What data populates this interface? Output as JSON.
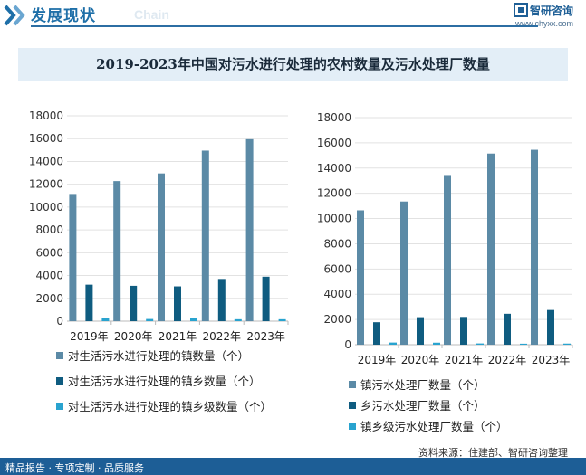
{
  "header": {
    "section_title": "发展现状",
    "section_subtitle": "Chain",
    "brand_name": "智研咨询",
    "brand_url": "www.chyxx.com"
  },
  "banner_title": "2019-2023年中国对污水进行处理的农村数量及污水处理厂数量",
  "source_note": "资料来源：住建部、智研咨询整理",
  "footer": {
    "left": "精品报告 · 专项定制 · 品质服务"
  },
  "colors": {
    "series1": "#5b8aa6",
    "series2": "#0f5c80",
    "series3": "#29a3cf",
    "footer_bg": "#1d5e96"
  },
  "chart_data": [
    {
      "type": "bar",
      "categories": [
        "2019年",
        "2020年",
        "2021年",
        "2022年",
        "2023年"
      ],
      "ylim": [
        0,
        18000
      ],
      "yticks": [
        "0",
        "2000",
        "4000",
        "6000",
        "8000",
        "10000",
        "12000",
        "14000",
        "16000",
        "18000"
      ],
      "grid": true,
      "legend_position": "bottom",
      "series": [
        {
          "name": "对生活污水进行处理的镇数量（个）",
          "values": [
            11150,
            12280,
            12950,
            14950,
            15950
          ]
        },
        {
          "name": "对生活污水进行处理的镇乡数量（个）",
          "values": [
            3200,
            3100,
            3050,
            3700,
            3900
          ]
        },
        {
          "name": "对生活污水进行处理的镇乡级数量（个）",
          "values": [
            280,
            190,
            260,
            170,
            170
          ]
        }
      ]
    },
    {
      "type": "bar",
      "categories": [
        "2019年",
        "2020年",
        "2021年",
        "2022年",
        "2023年"
      ],
      "ylim": [
        0,
        18000
      ],
      "yticks": [
        "0",
        "2000",
        "4000",
        "6000",
        "8000",
        "10000",
        "12000",
        "14000",
        "16000",
        "18000"
      ],
      "grid": true,
      "legend_position": "bottom",
      "series": [
        {
          "name": "镇污水处理厂数量（个）",
          "values": [
            10650,
            11350,
            13450,
            15150,
            15450
          ]
        },
        {
          "name": "乡污水处理厂数量（个）",
          "values": [
            1780,
            2180,
            2200,
            2450,
            2750
          ]
        },
        {
          "name": "镇乡级污水处理厂数量（个）",
          "values": [
            170,
            160,
            100,
            80,
            90
          ]
        }
      ]
    }
  ]
}
